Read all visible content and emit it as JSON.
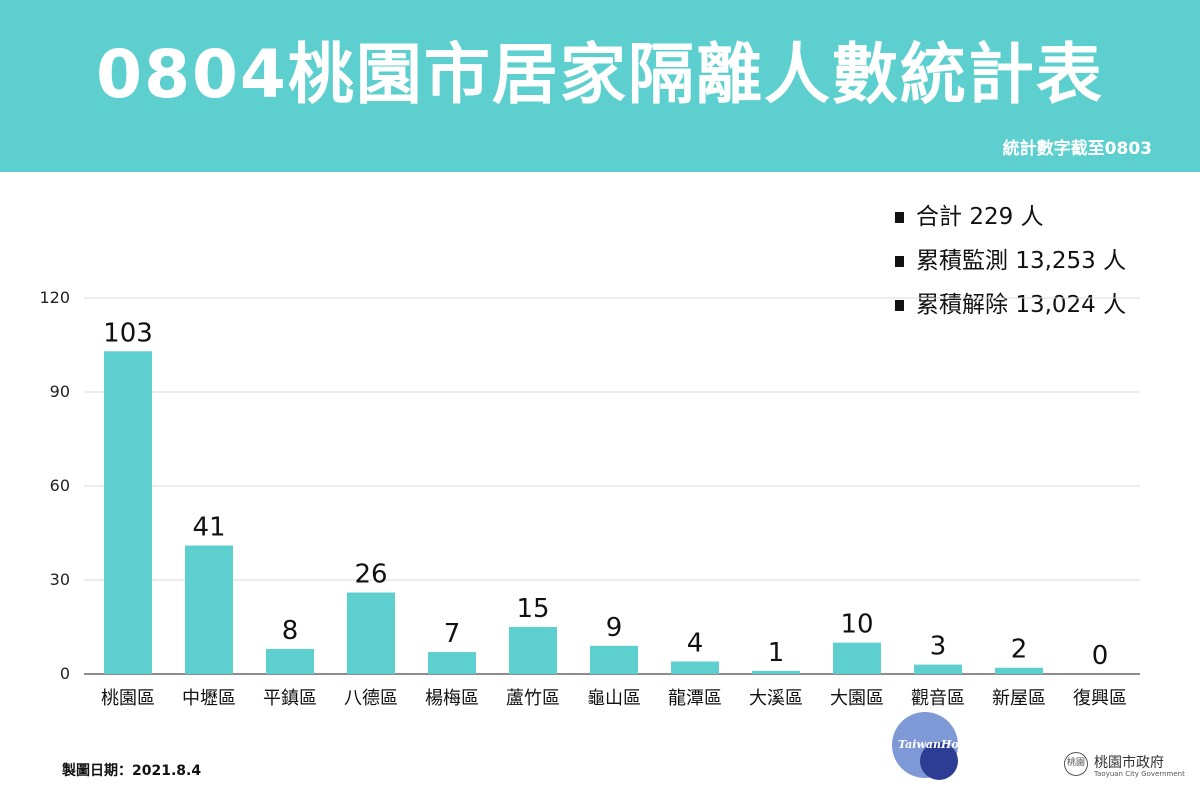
{
  "header": {
    "title": "0804桃園市居家隔離人數統計表",
    "subtitle": "統計數字截至0803"
  },
  "summary": {
    "items": [
      {
        "label": "合計",
        "value": "229",
        "unit": "人"
      },
      {
        "label": "累積監測",
        "value": "13,253",
        "unit": "人"
      },
      {
        "label": "累積解除",
        "value": "13,024",
        "unit": "人"
      }
    ]
  },
  "chart_data": {
    "type": "bar",
    "categories": [
      "桃園區",
      "中壢區",
      "平鎮區",
      "八德區",
      "楊梅區",
      "蘆竹區",
      "龜山區",
      "龍潭區",
      "大溪區",
      "大園區",
      "觀音區",
      "新屋區",
      "復興區"
    ],
    "values": [
      103,
      41,
      8,
      26,
      7,
      15,
      9,
      4,
      1,
      10,
      3,
      2,
      0
    ],
    "yticks": [
      0,
      30,
      60,
      90,
      120
    ],
    "ylim": [
      0,
      120
    ],
    "grid": true,
    "title": "",
    "xlabel": "",
    "ylabel": "",
    "colors": {
      "bar": "#5ecfcf",
      "grid": "#d9d9d9",
      "axis": "#666666"
    }
  },
  "footer": {
    "date": "製圖日期：2021.8.4",
    "watermark": "TaiwanHot",
    "gov_name": "桃園市政府",
    "gov_en": "Taoyuan City Government",
    "seal_text": "桃園"
  }
}
